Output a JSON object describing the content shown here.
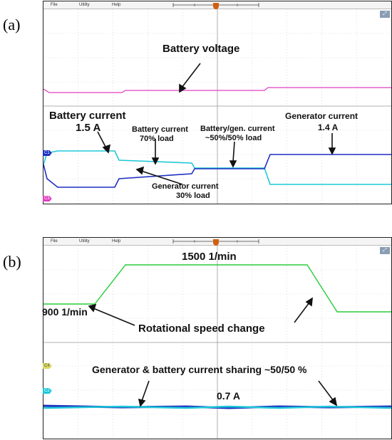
{
  "scope_menu": {
    "file": "File",
    "utility": "Utility",
    "help": "Help"
  },
  "colors": {
    "voltage_trace": "#e040c0",
    "battery_trace": "#1ec8d8",
    "generator_trace": "#1e2fc0",
    "speed_trace": "#28cc3c",
    "grid": "#c8c8c8",
    "trigger_marker": "#d06010"
  },
  "panel_a": {
    "label": "(a)",
    "channel_markers": {
      "c1": "C1",
      "c3": "C3"
    },
    "annotations": {
      "battery_voltage": "Battery voltage",
      "battery_current_title": "Battery current",
      "battery_current_value": "1.5 A",
      "battery_current_70_line1": "Battery current",
      "battery_current_70_line2": "70% load",
      "battery_gen_line1": "Battery/gen. current",
      "battery_gen_line2": "~50%/50% load",
      "generator_current_title": "Generator current",
      "generator_current_value": "1.4 A",
      "generator_30_line1": "Generator current",
      "generator_30_line2": "30% load"
    }
  },
  "panel_b": {
    "label": "(b)",
    "channel_markers": {
      "c4": "C4",
      "c2": "C2"
    },
    "annotations": {
      "speed_high": "1500 1/min",
      "speed_low": "900 1/min",
      "speed_change": "Rotational speed change",
      "current_sharing": "Generator & battery current sharing ~50/50 %",
      "current_value": "0.7 A"
    }
  }
}
